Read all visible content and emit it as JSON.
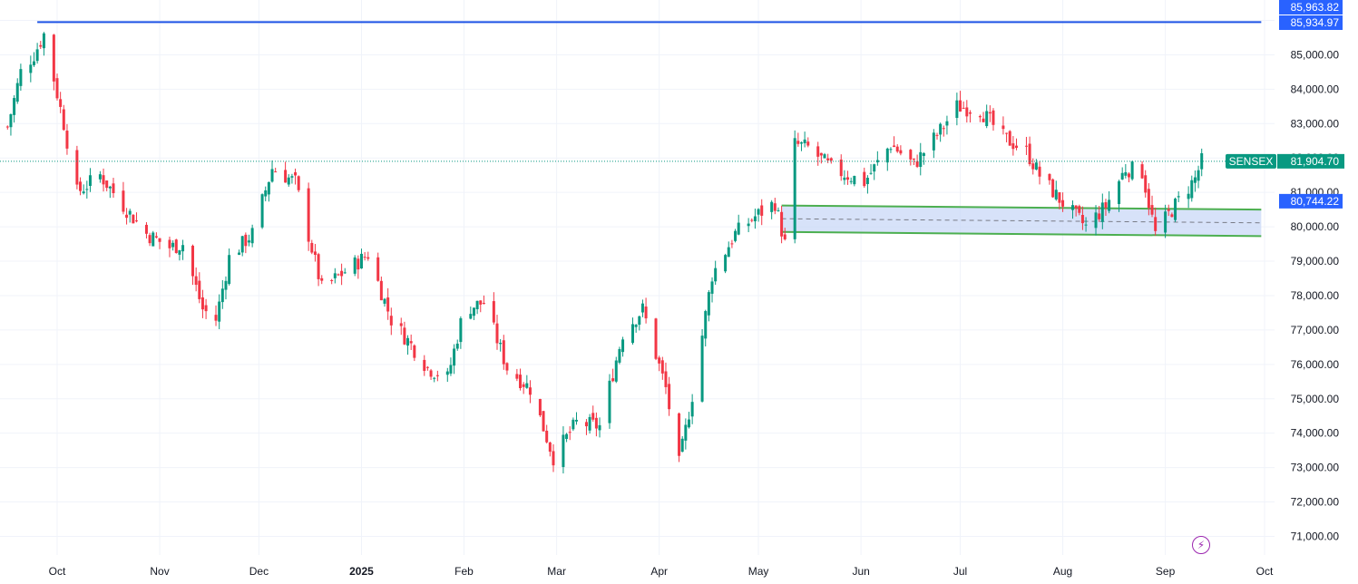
{
  "chart_data": {
    "type": "candlestick",
    "symbol": "SENSEX",
    "y_axis": {
      "min": 70700,
      "max": 86300,
      "ticks": [
        "71,000.00",
        "72,000.00",
        "73,000.00",
        "74,000.00",
        "75,000.00",
        "76,000.00",
        "77,000.00",
        "78,000.00",
        "79,000.00",
        "80,000.00",
        "81,000.00",
        "82,000.00",
        "83,000.00",
        "84,000.00",
        "85,000.00"
      ],
      "tick_values": [
        71000,
        72000,
        73000,
        74000,
        75000,
        76000,
        77000,
        78000,
        79000,
        80000,
        81000,
        82000,
        83000,
        84000,
        85000
      ]
    },
    "x_axis": {
      "labels": [
        {
          "text": "Oct",
          "date": "2024-10-01",
          "bold": false
        },
        {
          "text": "Nov",
          "date": "2024-11-01",
          "bold": false
        },
        {
          "text": "Dec",
          "date": "2024-12-01",
          "bold": false
        },
        {
          "text": "2025",
          "date": "2025-01-01",
          "bold": true
        },
        {
          "text": "Feb",
          "date": "2025-02-01",
          "bold": false
        },
        {
          "text": "Mar",
          "date": "2025-03-01",
          "bold": false
        },
        {
          "text": "Apr",
          "date": "2025-04-01",
          "bold": false
        },
        {
          "text": "May",
          "date": "2025-05-01",
          "bold": false
        },
        {
          "text": "Jun",
          "date": "2025-06-01",
          "bold": false
        },
        {
          "text": "Jul",
          "date": "2025-07-01",
          "bold": false
        },
        {
          "text": "Aug",
          "date": "2025-08-01",
          "bold": false
        },
        {
          "text": "Sep",
          "date": "2025-09-01",
          "bold": false
        },
        {
          "text": "Oct",
          "date": "2025-10-01",
          "bold": false
        }
      ],
      "start_date": "2024-09-16",
      "end_date": "2025-10-12"
    },
    "close_path": [
      [
        "2024-09-16",
        82900
      ],
      [
        "2024-09-20",
        84500
      ],
      [
        "2024-09-24",
        85000
      ],
      [
        "2024-09-27",
        85600
      ],
      [
        "2024-10-03",
        83000
      ],
      [
        "2024-10-07",
        81000
      ],
      [
        "2024-10-14",
        81500
      ],
      [
        "2024-10-22",
        80500
      ],
      [
        "2024-10-28",
        79800
      ],
      [
        "2024-11-04",
        79400
      ],
      [
        "2024-11-08",
        79500
      ],
      [
        "2024-11-14",
        77600
      ],
      [
        "2024-11-18",
        77300
      ],
      [
        "2024-11-22",
        79100
      ],
      [
        "2024-11-29",
        79800
      ],
      [
        "2024-12-05",
        81700
      ],
      [
        "2024-12-12",
        81300
      ],
      [
        "2024-12-20",
        78200
      ],
      [
        "2024-12-27",
        78700
      ],
      [
        "2025-01-03",
        79200
      ],
      [
        "2025-01-10",
        77300
      ],
      [
        "2025-01-15",
        76700
      ],
      [
        "2025-01-21",
        75900
      ],
      [
        "2025-01-27",
        75600
      ],
      [
        "2025-02-01",
        77600
      ],
      [
        "2025-02-07",
        77800
      ],
      [
        "2025-02-14",
        75900
      ],
      [
        "2025-02-21",
        75300
      ],
      [
        "2025-02-28",
        73300
      ],
      [
        "2025-03-07",
        74300
      ],
      [
        "2025-03-14",
        74200
      ],
      [
        "2025-03-21",
        76900
      ],
      [
        "2025-03-27",
        77600
      ],
      [
        "2025-04-03",
        75300
      ],
      [
        "2025-04-07",
        73100
      ],
      [
        "2025-04-11",
        75100
      ],
      [
        "2025-04-17",
        78600
      ],
      [
        "2025-04-24",
        79800
      ],
      [
        "2025-04-30",
        80300
      ],
      [
        "2025-05-06",
        80700
      ],
      [
        "2025-05-09",
        79500
      ],
      [
        "2025-05-12",
        82400
      ],
      [
        "2025-05-16",
        82300
      ],
      [
        "2025-05-23",
        81700
      ],
      [
        "2025-06-02",
        81300
      ],
      [
        "2025-06-10",
        82400
      ],
      [
        "2025-06-17",
        81800
      ],
      [
        "2025-06-25",
        82800
      ],
      [
        "2025-06-30",
        83500
      ],
      [
        "2025-07-07",
        83400
      ],
      [
        "2025-07-14",
        82600
      ],
      [
        "2025-07-21",
        82200
      ],
      [
        "2025-07-25",
        81500
      ],
      [
        "2025-07-31",
        80800
      ],
      [
        "2025-08-08",
        80000
      ],
      [
        "2025-08-14",
        80600
      ],
      [
        "2025-08-20",
        81700
      ],
      [
        "2025-08-25",
        81600
      ],
      [
        "2025-08-29",
        79800
      ],
      [
        "2025-09-03",
        80500
      ],
      [
        "2025-09-10",
        81400
      ],
      [
        "2025-09-12",
        81904.7
      ]
    ],
    "price_lines": [
      {
        "label": "85,963.82",
        "value": 85963.82,
        "color": "#2962ff"
      },
      {
        "label": "85,934.97",
        "value": 85934.97,
        "color": "#2962ff"
      },
      {
        "label": "80,744.22",
        "value": 80744.22,
        "color": "#2962ff"
      }
    ],
    "horizontal_level": {
      "value": 85950,
      "start_date": "2024-09-25",
      "end_date": "2025-09-30",
      "color": "#1e53e5"
    },
    "last_price": {
      "symbol": "SENSEX",
      "label": "81,904.70",
      "value": 81904.7,
      "color": "#089981"
    },
    "channel": {
      "start_date": "2025-05-08",
      "end_date": "2025-09-30",
      "upper_start": 80620,
      "upper_end": 80500,
      "lower_start": 79850,
      "lower_end": 79730,
      "border_color": "#4caf50",
      "fill_color": "#c9d8f7"
    },
    "up_color": "#089981",
    "down_color": "#f23645"
  },
  "ui": {
    "bolt_icon_name": "lightning-bolt-icon",
    "bolt_glyph": "⚡"
  }
}
